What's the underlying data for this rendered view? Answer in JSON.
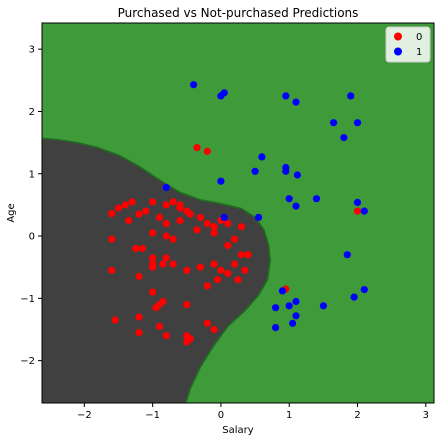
{
  "chart_data": {
    "type": "scatter",
    "title": "Purchased vs Not-purchased Predictions",
    "xlabel": "Salary",
    "ylabel": "Age",
    "xlim": [
      -2.62,
      3.12
    ],
    "ylim": [
      -2.68,
      3.42
    ],
    "xticks": [
      -2,
      -1,
      0,
      1,
      2,
      3
    ],
    "yticks": [
      -2,
      -1,
      0,
      1,
      2,
      3
    ],
    "legend_position": "top-right",
    "background_regions": {
      "class_0_color": "#404040",
      "class_1_color": "#3f9a3a"
    },
    "series": [
      {
        "name": "0",
        "color": "#ff0000",
        "points": [
          [
            -0.35,
            1.42
          ],
          [
            -0.2,
            1.36
          ],
          [
            2.0,
            0.4
          ],
          [
            0.95,
            -0.85
          ],
          [
            -1.6,
            0.36
          ],
          [
            -1.5,
            0.45
          ],
          [
            -1.4,
            0.5
          ],
          [
            -1.3,
            0.55
          ],
          [
            -1.1,
            0.4
          ],
          [
            -1.0,
            0.55
          ],
          [
            -0.8,
            0.5
          ],
          [
            -0.7,
            0.55
          ],
          [
            -0.6,
            0.45
          ],
          [
            -0.5,
            0.4
          ],
          [
            -0.45,
            0.35
          ],
          [
            -0.3,
            0.3
          ],
          [
            -0.2,
            0.2
          ],
          [
            -0.8,
            0.2
          ],
          [
            -0.6,
            0.25
          ],
          [
            -1.2,
            0.35
          ],
          [
            -0.9,
            0.3
          ],
          [
            -1.0,
            0.05
          ],
          [
            -0.8,
            0.0
          ],
          [
            -0.7,
            -0.05
          ],
          [
            -1.35,
            0.25
          ],
          [
            -1.6,
            -0.05
          ],
          [
            -1.25,
            -0.2
          ],
          [
            -1.15,
            -0.2
          ],
          [
            -1.0,
            -0.35
          ],
          [
            -1.0,
            -0.45
          ],
          [
            -0.8,
            -0.35
          ],
          [
            -0.7,
            -0.45
          ],
          [
            -0.5,
            -0.55
          ],
          [
            -0.3,
            -0.5
          ],
          [
            -0.1,
            -0.45
          ],
          [
            0.0,
            -0.55
          ],
          [
            0.1,
            -0.6
          ],
          [
            0.2,
            -0.45
          ],
          [
            0.3,
            -0.3
          ],
          [
            0.4,
            -0.3
          ],
          [
            0.35,
            -0.55
          ],
          [
            0.25,
            -0.7
          ],
          [
            -0.05,
            -0.7
          ],
          [
            -0.2,
            -0.8
          ],
          [
            -0.1,
            0.15
          ],
          [
            0.1,
            0.2
          ],
          [
            0.3,
            0.15
          ],
          [
            -0.1,
            0.05
          ],
          [
            -1.6,
            -0.55
          ],
          [
            -1.2,
            -0.65
          ],
          [
            -1.0,
            -0.9
          ],
          [
            -0.9,
            -1.1
          ],
          [
            -0.95,
            -1.15
          ],
          [
            -0.85,
            -1.05
          ],
          [
            -1.2,
            -1.3
          ],
          [
            -1.2,
            -1.55
          ],
          [
            -0.9,
            -1.45
          ],
          [
            -0.8,
            -1.6
          ],
          [
            -0.5,
            -1.1
          ],
          [
            -0.5,
            -1.6
          ],
          [
            -0.2,
            -1.4
          ],
          [
            -0.1,
            -1.5
          ],
          [
            -0.5,
            -1.7
          ],
          [
            -0.45,
            -1.65
          ],
          [
            -1.55,
            -1.35
          ],
          [
            -0.6,
            0.5
          ],
          [
            -0.35,
            0.1
          ],
          [
            0.2,
            -0.05
          ],
          [
            0.0,
            0.25
          ],
          [
            -0.85,
            -0.45
          ],
          [
            0.1,
            -0.15
          ],
          [
            -1.0,
            -0.5
          ]
        ]
      },
      {
        "name": "1",
        "color": "#0000ff",
        "points": [
          [
            -0.4,
            2.43
          ],
          [
            0.0,
            2.25
          ],
          [
            0.05,
            2.3
          ],
          [
            0.95,
            2.25
          ],
          [
            1.1,
            2.15
          ],
          [
            1.9,
            2.25
          ],
          [
            1.65,
            1.82
          ],
          [
            1.8,
            1.58
          ],
          [
            2.0,
            1.82
          ],
          [
            0.6,
            1.27
          ],
          [
            0.5,
            1.04
          ],
          [
            0.95,
            1.1
          ],
          [
            0.95,
            1.04
          ],
          [
            1.12,
            0.98
          ],
          [
            0.0,
            0.88
          ],
          [
            -0.8,
            0.78
          ],
          [
            1.0,
            0.6
          ],
          [
            1.1,
            0.48
          ],
          [
            1.4,
            0.6
          ],
          [
            2.0,
            0.54
          ],
          [
            2.1,
            0.4
          ],
          [
            0.05,
            0.3
          ],
          [
            0.55,
            0.3
          ],
          [
            1.85,
            -0.3
          ],
          [
            1.95,
            -0.98
          ],
          [
            2.1,
            -0.86
          ],
          [
            0.9,
            -0.88
          ],
          [
            0.8,
            -1.15
          ],
          [
            1.0,
            -1.12
          ],
          [
            1.1,
            -1.05
          ],
          [
            1.5,
            -1.12
          ],
          [
            0.8,
            -1.47
          ],
          [
            1.05,
            -1.4
          ],
          [
            1.1,
            -1.28
          ]
        ]
      }
    ]
  }
}
